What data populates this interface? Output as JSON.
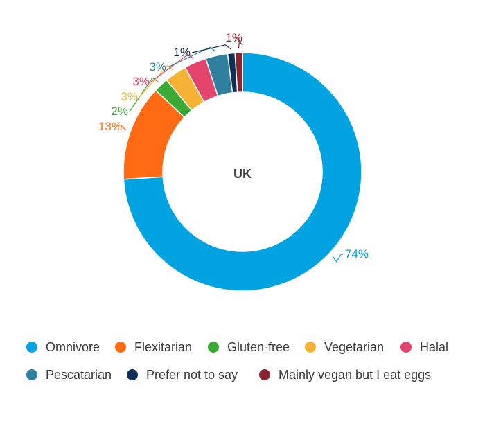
{
  "chart_data": {
    "type": "pie",
    "variant": "donut",
    "center_label": "UK",
    "legend_position": "bottom",
    "slices": [
      {
        "label": "Omnivore",
        "value": 74,
        "value_label": "74%",
        "color": "#00a3df"
      },
      {
        "label": "Flexitarian",
        "value": 13,
        "value_label": "13%",
        "color": "#ff6a13"
      },
      {
        "label": "Gluten-free",
        "value": 2,
        "value_label": "2%",
        "color": "#3aaa35"
      },
      {
        "label": "Vegetarian",
        "value": 3,
        "value_label": "3%",
        "color": "#f5b335"
      },
      {
        "label": "Halal",
        "value": 3,
        "value_label": "3%",
        "color": "#e2446c"
      },
      {
        "label": "Pescatarian",
        "value": 3,
        "value_label": "3%",
        "color": "#2f7f9e"
      },
      {
        "label": "Prefer not to say",
        "value": 1,
        "value_label": "1%",
        "color": "#0d2f5a"
      },
      {
        "label": "Mainly vegan but I eat eggs",
        "value": 1,
        "value_label": "1%",
        "color": "#8a2430"
      }
    ]
  }
}
